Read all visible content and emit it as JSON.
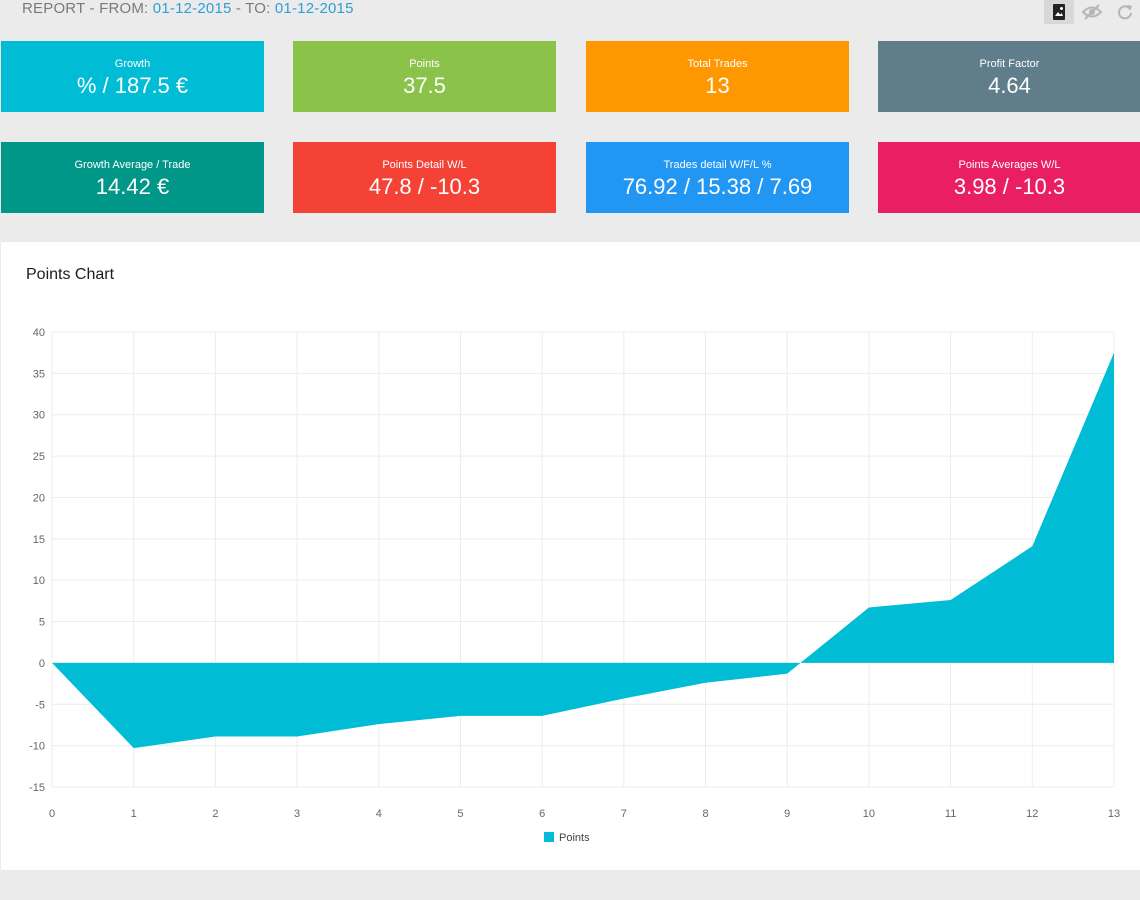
{
  "report": {
    "prefix": "REPORT - FROM: ",
    "from_date": "01-12-2015",
    "middle": " - TO: ",
    "to_date": "01-12-2015"
  },
  "toolbar": {
    "icons": [
      "bookmark-image-icon",
      "eye-off-icon",
      "refresh-icon"
    ]
  },
  "cards": [
    {
      "label": "Growth",
      "value": "% / 187.5 €",
      "color": "#00bcd4"
    },
    {
      "label": "Points",
      "value": "37.5",
      "color": "#8bc34a"
    },
    {
      "label": "Total Trades",
      "value": "13",
      "color": "#ff9800"
    },
    {
      "label": "Profit Factor",
      "value": "4.64",
      "color": "#607d8b"
    },
    {
      "label": "Growth Average / Trade",
      "value": "14.42 €",
      "color": "#009688"
    },
    {
      "label": "Points Detail W/L",
      "value": "47.8 / -10.3",
      "color": "#f44336"
    },
    {
      "label": "Trades detail W/F/L %",
      "value": "76.92 / 15.38 / 7.69",
      "color": "#2196f3"
    },
    {
      "label": "Points Averages W/L",
      "value": "3.98 / -10.3",
      "color": "#e91e63"
    }
  ],
  "panel": {
    "title": "Points Chart"
  },
  "chart_data": {
    "type": "area",
    "x": [
      0,
      1,
      2,
      3,
      4,
      5,
      6,
      7,
      8,
      9,
      10,
      11,
      12,
      13
    ],
    "series": [
      {
        "name": "Points",
        "values": [
          0,
          -10.3,
          -8.9,
          -8.9,
          -7.4,
          -6.4,
          -6.4,
          -4.3,
          -2.4,
          -1.3,
          6.7,
          7.6,
          14.1,
          37.5
        ],
        "color": "#00bcd4"
      }
    ],
    "y_ticks": [
      40,
      35,
      30,
      25,
      20,
      15,
      10,
      5,
      0,
      -5,
      -10,
      -15
    ],
    "x_ticks": [
      0,
      1,
      2,
      3,
      4,
      5,
      6,
      7,
      8,
      9,
      10,
      11,
      12,
      13
    ],
    "ylim": [
      -15,
      40
    ],
    "xlim": [
      0,
      13
    ],
    "grid": true,
    "legend": "bottom-center"
  }
}
